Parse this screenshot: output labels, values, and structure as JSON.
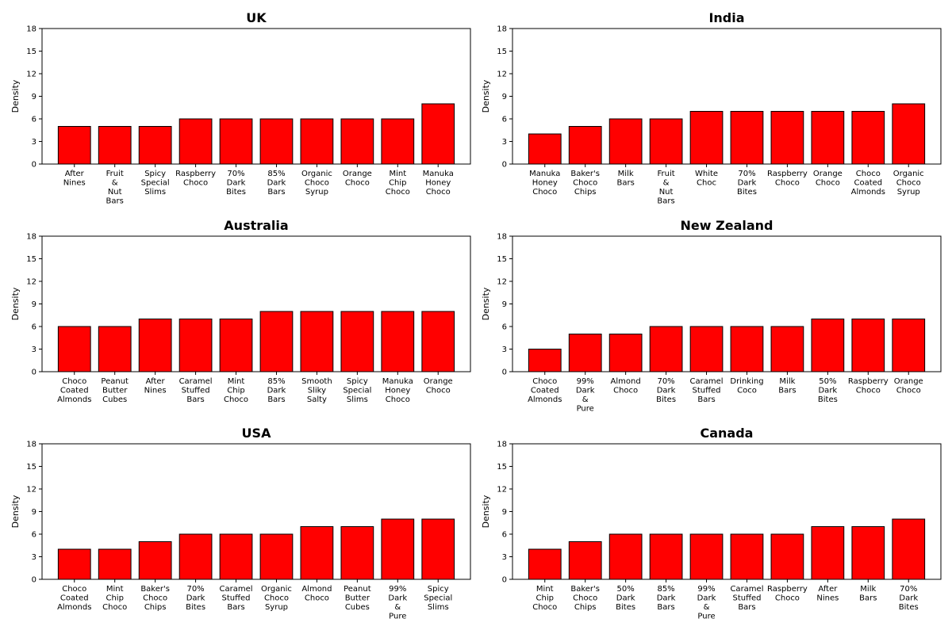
{
  "colors": {
    "bar": "#ff0000",
    "bar_edge": "#000000"
  },
  "chart_data": [
    {
      "type": "bar",
      "title": "UK",
      "ylabel": "Density",
      "ylim": [
        0,
        18
      ],
      "yticks": [
        0,
        3,
        6,
        9,
        12,
        15,
        18
      ],
      "categories": [
        "After Nines",
        "Fruit & Nut Bars",
        "Spicy Special Slims",
        "Raspberry Choco",
        "70% Dark Bites",
        "85% Dark Bars",
        "Organic Choco Syrup",
        "Orange Choco",
        "Mint Chip Choco",
        "Manuka Honey Choco"
      ],
      "values": [
        5,
        5,
        5,
        6,
        6,
        6,
        6,
        6,
        6,
        8
      ]
    },
    {
      "type": "bar",
      "title": "India",
      "ylabel": "Density",
      "ylim": [
        0,
        18
      ],
      "yticks": [
        0,
        3,
        6,
        9,
        12,
        15,
        18
      ],
      "categories": [
        "Manuka Honey Choco",
        "Baker's Choco Chips",
        "Milk Bars",
        "Fruit & Nut Bars",
        "White Choc",
        "70% Dark Bites",
        "Raspberry Choco",
        "Orange Choco",
        "Choco Coated Almonds",
        "Organic Choco Syrup"
      ],
      "values": [
        4,
        5,
        6,
        6,
        7,
        7,
        7,
        7,
        7,
        8
      ]
    },
    {
      "type": "bar",
      "title": "Australia",
      "ylabel": "Density",
      "ylim": [
        0,
        18
      ],
      "yticks": [
        0,
        3,
        6,
        9,
        12,
        15,
        18
      ],
      "categories": [
        "Choco Coated Almonds",
        "Peanut Butter Cubes",
        "After Nines",
        "Caramel Stuffed Bars",
        "Mint Chip Choco",
        "85% Dark Bars",
        "Smooth Sliky Salty",
        "Spicy Special Slims",
        "Manuka Honey Choco",
        "Orange Choco"
      ],
      "values": [
        6,
        6,
        7,
        7,
        7,
        8,
        8,
        8,
        8,
        8
      ]
    },
    {
      "type": "bar",
      "title": "New Zealand",
      "ylabel": "Density",
      "ylim": [
        0,
        18
      ],
      "yticks": [
        0,
        3,
        6,
        9,
        12,
        15,
        18
      ],
      "categories": [
        "Choco Coated Almonds",
        "99% Dark & Pure",
        "Almond Choco",
        "70% Dark Bites",
        "Caramel Stuffed Bars",
        "Drinking Coco",
        "Milk Bars",
        "50% Dark Bites",
        "Raspberry Choco",
        "Orange Choco"
      ],
      "values": [
        3,
        5,
        5,
        6,
        6,
        6,
        6,
        7,
        7,
        7
      ]
    },
    {
      "type": "bar",
      "title": "USA",
      "ylabel": "Density",
      "ylim": [
        0,
        18
      ],
      "yticks": [
        0,
        3,
        6,
        9,
        12,
        15,
        18
      ],
      "categories": [
        "Choco Coated Almonds",
        "Mint Chip Choco",
        "Baker's Choco Chips",
        "70% Dark Bites",
        "Caramel Stuffed Bars",
        "Organic Choco Syrup",
        "Almond Choco",
        "Peanut Butter Cubes",
        "99% Dark & Pure",
        "Spicy Special Slims"
      ],
      "values": [
        4,
        4,
        5,
        6,
        6,
        6,
        7,
        7,
        8,
        8
      ]
    },
    {
      "type": "bar",
      "title": "Canada",
      "ylabel": "Density",
      "ylim": [
        0,
        18
      ],
      "yticks": [
        0,
        3,
        6,
        9,
        12,
        15,
        18
      ],
      "categories": [
        "Mint Chip Choco",
        "Baker's Choco Chips",
        "50% Dark Bites",
        "85% Dark Bars",
        "99% Dark & Pure",
        "Caramel Stuffed Bars",
        "Raspberry Choco",
        "After Nines",
        "Milk Bars",
        "70% Dark Bites"
      ],
      "values": [
        4,
        5,
        6,
        6,
        6,
        6,
        6,
        7,
        7,
        8
      ]
    }
  ]
}
